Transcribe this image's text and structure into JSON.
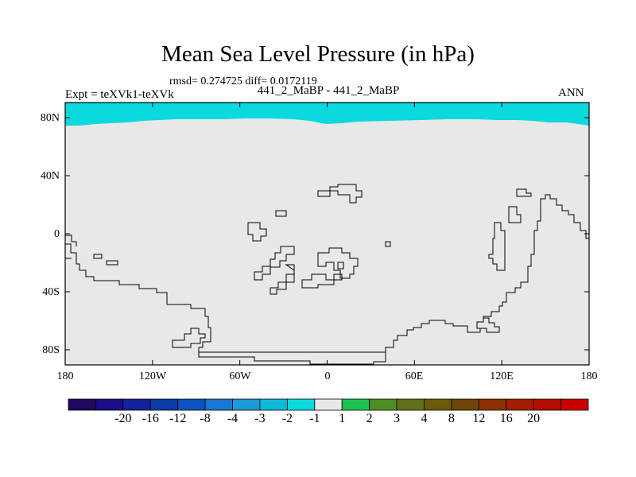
{
  "title": "Mean Sea Level Pressure (in hPa)",
  "stats": "rmsd= 0.274725 diff= 0.0172119",
  "expt": "Expt = teXVk1-teXVk",
  "case_label": "441_2_MaBP - 441_2_MaBP",
  "season": "ANN",
  "lat_labels": [
    "80N",
    "40N",
    "0",
    "40S",
    "80S"
  ],
  "lon_labels": [
    "180",
    "120W",
    "60W",
    "0",
    "60E",
    "120E",
    "180"
  ],
  "colorbar": {
    "colors": [
      "#1f0a5e",
      "#1a0d86",
      "#12239a",
      "#0b3aa8",
      "#0e52bd",
      "#1a76cf",
      "#1d9ad8",
      "#0fbad9",
      "#0ad9de",
      "#e8e8e8",
      "#1cc24e",
      "#4c8f26",
      "#5f7119",
      "#6a5a0c",
      "#6e4508",
      "#8c3004",
      "#a11e03",
      "#b60d02",
      "#cc0000"
    ],
    "labels": [
      "-20",
      "-16",
      "-12",
      "-8",
      "-4",
      "-3",
      "-2",
      "-1",
      "1",
      "2",
      "3",
      "4",
      "8",
      "12",
      "16",
      "20"
    ]
  },
  "map_colors": {
    "background": "#e8e8e8",
    "arctic_band": "#0ad9de",
    "coast": "#000000"
  }
}
